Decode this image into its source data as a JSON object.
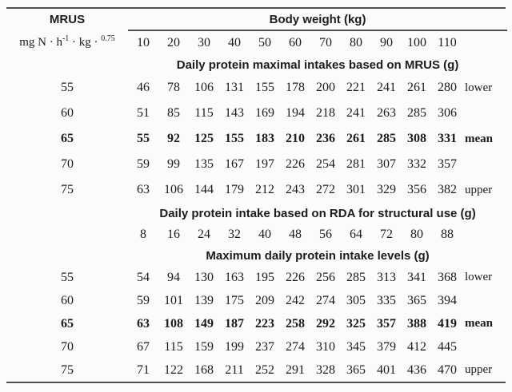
{
  "table": {
    "header": {
      "mrus_label": "MRUS",
      "unit": {
        "prefix": "mg N · h",
        "sup1": "-1",
        "mid": " · kg · ",
        "sup2": "0.75"
      },
      "body_weight_label": "Body weight (kg)",
      "weights": [
        "10",
        "20",
        "30",
        "40",
        "50",
        "60",
        "70",
        "80",
        "90",
        "100",
        "110"
      ]
    },
    "sections": [
      {
        "title": "Daily protein maximal intakes based on MRUS (g)",
        "rows": [
          {
            "mrus": "55",
            "values": [
              "46",
              "78",
              "106",
              "131",
              "155",
              "178",
              "200",
              "221",
              "241",
              "261",
              "280"
            ],
            "label": "lower",
            "bold": false
          },
          {
            "mrus": "60",
            "values": [
              "51",
              "85",
              "115",
              "143",
              "169",
              "194",
              "218",
              "241",
              "263",
              "285",
              "306"
            ],
            "label": "",
            "bold": false
          },
          {
            "mrus": "65",
            "values": [
              "55",
              "92",
              "125",
              "155",
              "183",
              "210",
              "236",
              "261",
              "285",
              "308",
              "331"
            ],
            "label": "mean",
            "bold": true
          },
          {
            "mrus": "70",
            "values": [
              "59",
              "99",
              "135",
              "167",
              "197",
              "226",
              "254",
              "281",
              "307",
              "332",
              "357"
            ],
            "label": "",
            "bold": false
          },
          {
            "mrus": "75",
            "values": [
              "63",
              "106",
              "144",
              "179",
              "212",
              "243",
              "272",
              "301",
              "329",
              "356",
              "382"
            ],
            "label": "upper",
            "bold": false
          }
        ]
      },
      {
        "title": "Daily protein intake based on RDA for structural use (g)",
        "rows": [
          {
            "mrus": "",
            "values": [
              "8",
              "16",
              "24",
              "32",
              "40",
              "48",
              "56",
              "64",
              "72",
              "80",
              "88"
            ],
            "label": "",
            "bold": false
          }
        ]
      },
      {
        "title": "Maximum daily protein intake levels (g)",
        "rows": [
          {
            "mrus": "55",
            "values": [
              "54",
              "94",
              "130",
              "163",
              "195",
              "226",
              "256",
              "285",
              "313",
              "341",
              "368"
            ],
            "label": "lower",
            "bold": false
          },
          {
            "mrus": "60",
            "values": [
              "59",
              "101",
              "139",
              "175",
              "209",
              "242",
              "274",
              "305",
              "335",
              "365",
              "394"
            ],
            "label": "",
            "bold": false
          },
          {
            "mrus": "65",
            "values": [
              "63",
              "108",
              "149",
              "187",
              "223",
              "258",
              "292",
              "325",
              "357",
              "388",
              "419"
            ],
            "label": "mean",
            "bold": true
          },
          {
            "mrus": "70",
            "values": [
              "67",
              "115",
              "159",
              "199",
              "237",
              "274",
              "310",
              "345",
              "379",
              "412",
              "445"
            ],
            "label": "",
            "bold": false
          },
          {
            "mrus": "75",
            "values": [
              "71",
              "122",
              "168",
              "211",
              "252",
              "291",
              "328",
              "365",
              "401",
              "436",
              "470"
            ],
            "label": "upper",
            "bold": false
          }
        ]
      }
    ]
  }
}
